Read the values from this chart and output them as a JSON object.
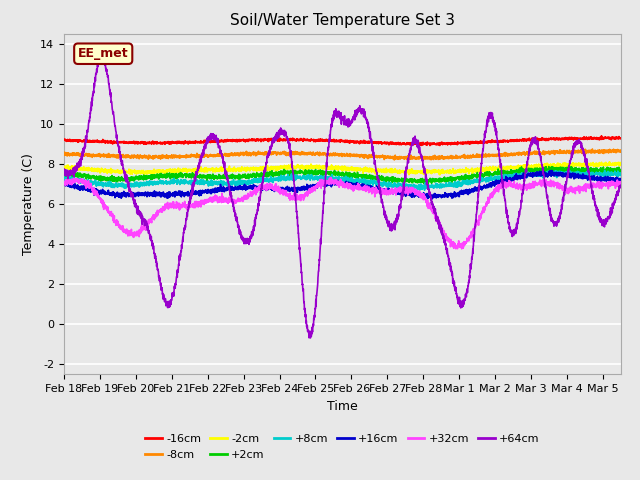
{
  "title": "Soil/Water Temperature Set 3",
  "xlabel": "Time",
  "ylabel": "Temperature (C)",
  "ylim": [
    -2.5,
    14.5
  ],
  "xlim_days": [
    0,
    15.5
  ],
  "plot_bg_color": "#e8e8e8",
  "grid_color": "white",
  "annotation_text": "EE_met",
  "annotation_bg": "#ffffcc",
  "annotation_border": "#8b0000",
  "series_order": [
    "-16cm",
    "-8cm",
    "-2cm",
    "+2cm",
    "+8cm",
    "+16cm",
    "+32cm",
    "+64cm"
  ],
  "series_colors": {
    "-16cm": "#ff0000",
    "-8cm": "#ff8800",
    "-2cm": "#ffff00",
    "+2cm": "#00cc00",
    "+8cm": "#00cccc",
    "+16cm": "#0000cc",
    "+32cm": "#ff44ff",
    "+64cm": "#9900cc"
  },
  "x_tick_labels": [
    "Feb 18",
    "Feb 19",
    "Feb 20",
    "Feb 21",
    "Feb 22",
    "Feb 23",
    "Feb 24",
    "Feb 25",
    "Feb 26",
    "Feb 27",
    "Feb 28",
    "Mar 1",
    "Mar 2",
    "Mar 3",
    "Mar 4",
    "Mar 5"
  ],
  "x_tick_positions": [
    0,
    1,
    2,
    3,
    4,
    5,
    6,
    7,
    8,
    9,
    10,
    11,
    12,
    13,
    14,
    15
  ],
  "y_ticks": [
    -2,
    0,
    2,
    4,
    6,
    8,
    10,
    12,
    14
  ],
  "fontsize_title": 11,
  "fontsize_axis": 9,
  "fontsize_tick": 8,
  "fontsize_legend": 8,
  "fontsize_annotation": 9
}
